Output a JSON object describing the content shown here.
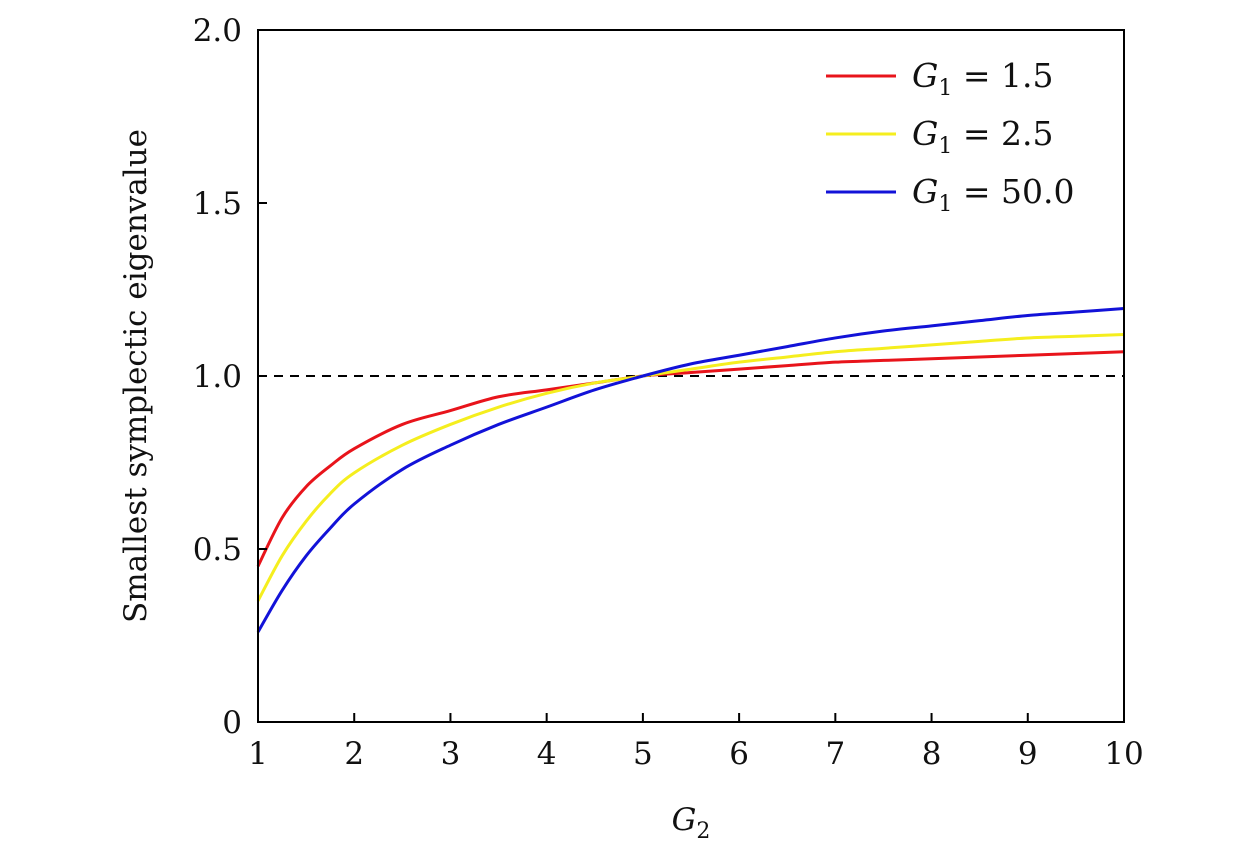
{
  "chart_data": {
    "type": "line",
    "xlabel": "G",
    "xlabel_sub": "2",
    "ylabel": "Smallest symplectic eigenvalue",
    "xlim": [
      1,
      10
    ],
    "ylim": [
      0,
      2.0
    ],
    "x_ticks": [
      1,
      2,
      3,
      4,
      5,
      6,
      7,
      8,
      9,
      10
    ],
    "x_tick_labels": [
      "1",
      "2",
      "3",
      "4",
      "5",
      "6",
      "7",
      "8",
      "9",
      "10"
    ],
    "y_ticks": [
      0,
      0.5,
      1.0,
      1.5,
      2.0
    ],
    "y_tick_labels": [
      "0",
      "0.5",
      "1.0",
      "1.5",
      "2.0"
    ],
    "grid": false,
    "legend_position": "top-right",
    "reference_line": {
      "y": 1.0,
      "style": "dashed",
      "color": "#000000"
    },
    "x": [
      1,
      1.25,
      1.5,
      1.75,
      2,
      2.5,
      3,
      3.5,
      4,
      4.5,
      5,
      5.5,
      6,
      6.5,
      7,
      7.5,
      8,
      8.5,
      9,
      9.5,
      10
    ],
    "series": [
      {
        "name": "G_1 = 1.5",
        "legend_var": "G",
        "legend_sub": "1",
        "legend_rest": " = 1.5",
        "color": "#e8141b",
        "values": [
          0.45,
          0.59,
          0.68,
          0.74,
          0.79,
          0.86,
          0.9,
          0.94,
          0.96,
          0.98,
          1.0,
          1.01,
          1.02,
          1.03,
          1.04,
          1.045,
          1.05,
          1.055,
          1.06,
          1.065,
          1.07
        ]
      },
      {
        "name": "G_1 = 2.5",
        "legend_var": "G",
        "legend_sub": "1",
        "legend_rest": " = 2.5",
        "color": "#f5ee1e",
        "values": [
          0.35,
          0.48,
          0.58,
          0.66,
          0.72,
          0.8,
          0.86,
          0.91,
          0.95,
          0.98,
          1.0,
          1.02,
          1.04,
          1.055,
          1.07,
          1.08,
          1.09,
          1.1,
          1.11,
          1.115,
          1.12
        ]
      },
      {
        "name": "G_1 = 50.0",
        "legend_var": "G",
        "legend_sub": "1",
        "legend_rest": " = 50.0",
        "color": "#1212d8",
        "values": [
          0.26,
          0.38,
          0.48,
          0.56,
          0.63,
          0.73,
          0.8,
          0.86,
          0.91,
          0.96,
          1.0,
          1.035,
          1.06,
          1.085,
          1.11,
          1.13,
          1.145,
          1.16,
          1.175,
          1.185,
          1.195
        ]
      }
    ]
  }
}
